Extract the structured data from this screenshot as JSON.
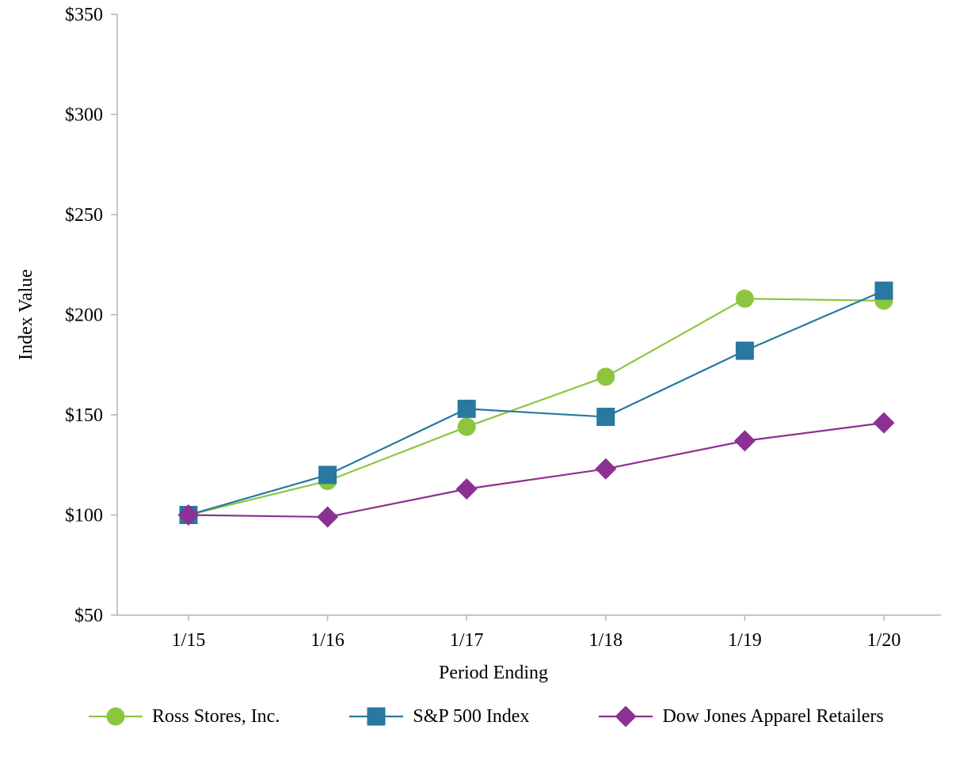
{
  "chart_data": {
    "type": "line",
    "title": "",
    "xlabel": "Period Ending",
    "ylabel": "Index Value",
    "categories": [
      "1/15",
      "1/16",
      "1/17",
      "1/18",
      "1/19",
      "1/20"
    ],
    "ylim": [
      50,
      350
    ],
    "ytick_step": 50,
    "ytick_prefix": "$",
    "ytick_labels": [
      "$50",
      "$100",
      "$150",
      "$200",
      "$250",
      "$300",
      "$350"
    ],
    "grid": false,
    "legend_position": "bottom",
    "axis_color": "#b3b3b3",
    "series": [
      {
        "name": "Ross Stores, Inc.",
        "marker": "circle",
        "color": "#8cc63f",
        "values": [
          100,
          117,
          144,
          169,
          208,
          207
        ]
      },
      {
        "name": "S&P 500 Index",
        "marker": "square",
        "color": "#2878a0",
        "values": [
          100,
          120,
          153,
          149,
          182,
          212
        ]
      },
      {
        "name": "Dow Jones Apparel Retailers",
        "marker": "diamond",
        "color": "#8b3191",
        "values": [
          100,
          99,
          113,
          123,
          137,
          146
        ]
      }
    ]
  }
}
